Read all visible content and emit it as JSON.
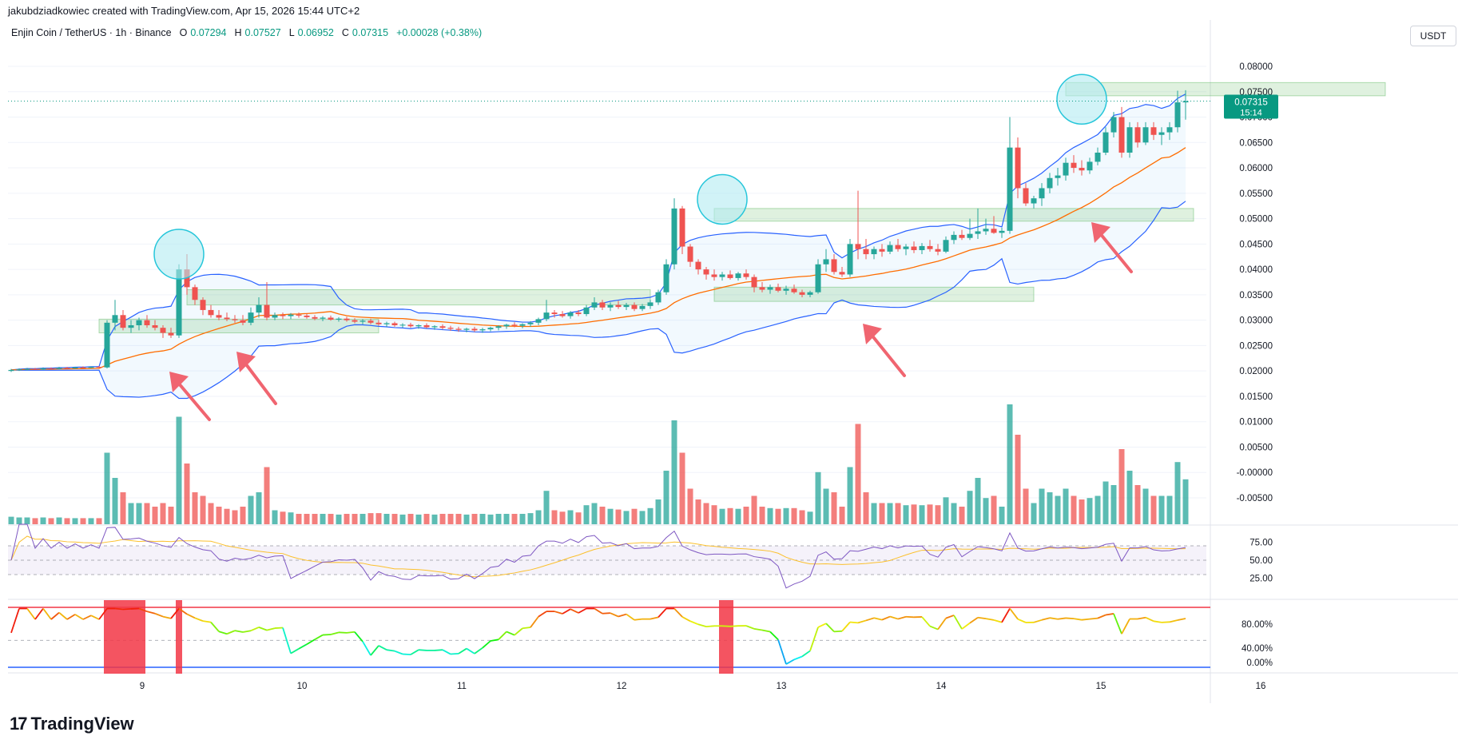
{
  "header": {
    "created_line": "jakubdziadkowiec created with TradingView.com, Apr 15, 2026 15:44 UTC+2",
    "symbol": "Enjin Coin / TetherUS · 1h · Binance",
    "o_label": "O",
    "o_value": "0.07294",
    "h_label": "H",
    "h_value": "0.07527",
    "l_label": "L",
    "l_value": "0.06952",
    "c_label": "C",
    "c_value": "0.07315",
    "change": "+0.00028 (+0.38%)",
    "currency": "USDT"
  },
  "price_badge": {
    "price": "0.07315",
    "countdown": "15:14"
  },
  "brand": {
    "name": "TradingView"
  },
  "colors": {
    "up": "#26a69a",
    "down": "#ef5350",
    "bb": "#2962ff",
    "ma": "#ff6d00",
    "rsi": "#7e57c2",
    "rsi_ma": "#fbc02d"
  },
  "chart_data": {
    "type": "candlestick",
    "price_axis": [
      "0.08000",
      "0.07500",
      "0.07000",
      "0.06500",
      "0.06000",
      "0.05500",
      "0.05000",
      "0.04500",
      "0.04000",
      "0.03500",
      "0.03000",
      "0.02500",
      "0.02000",
      "0.01500",
      "0.01000",
      "0.00500",
      "-0.00000",
      "-0.00500"
    ],
    "ylim": [
      -0.005,
      0.08
    ],
    "time_axis": [
      "9",
      "10",
      "11",
      "12",
      "13",
      "14",
      "15",
      "16"
    ],
    "rsi_axis": [
      "75.00",
      "50.00",
      "25.00"
    ],
    "osc_axis": [
      "80.00%",
      "40.00%",
      "0.00%"
    ],
    "last_close": 0.07315,
    "candles": [
      {
        "o": 0.02,
        "h": 0.0204,
        "l": 0.0198,
        "c": 0.0202
      },
      {
        "o": 0.0202,
        "h": 0.0205,
        "l": 0.02,
        "c": 0.0203
      },
      {
        "o": 0.0203,
        "h": 0.0206,
        "l": 0.0201,
        "c": 0.0204
      },
      {
        "o": 0.0204,
        "h": 0.0206,
        "l": 0.0202,
        "c": 0.0203
      },
      {
        "o": 0.0203,
        "h": 0.0207,
        "l": 0.0202,
        "c": 0.0205
      },
      {
        "o": 0.0205,
        "h": 0.0207,
        "l": 0.0203,
        "c": 0.0204
      },
      {
        "o": 0.0204,
        "h": 0.0208,
        "l": 0.0203,
        "c": 0.0206
      },
      {
        "o": 0.0206,
        "h": 0.0208,
        "l": 0.0204,
        "c": 0.0205
      },
      {
        "o": 0.0205,
        "h": 0.0208,
        "l": 0.0204,
        "c": 0.0207
      },
      {
        "o": 0.0207,
        "h": 0.0209,
        "l": 0.0205,
        "c": 0.0206
      },
      {
        "o": 0.0206,
        "h": 0.0209,
        "l": 0.0205,
        "c": 0.0208
      },
      {
        "o": 0.0208,
        "h": 0.021,
        "l": 0.0206,
        "c": 0.0207
      },
      {
        "o": 0.0207,
        "h": 0.03,
        "l": 0.0205,
        "c": 0.0295
      },
      {
        "o": 0.0295,
        "h": 0.034,
        "l": 0.028,
        "c": 0.031
      },
      {
        "o": 0.031,
        "h": 0.032,
        "l": 0.028,
        "c": 0.0285
      },
      {
        "o": 0.0285,
        "h": 0.03,
        "l": 0.0275,
        "c": 0.029
      },
      {
        "o": 0.029,
        "h": 0.0305,
        "l": 0.028,
        "c": 0.03
      },
      {
        "o": 0.03,
        "h": 0.031,
        "l": 0.0285,
        "c": 0.029
      },
      {
        "o": 0.029,
        "h": 0.03,
        "l": 0.028,
        "c": 0.0285
      },
      {
        "o": 0.0285,
        "h": 0.029,
        "l": 0.0265,
        "c": 0.0275
      },
      {
        "o": 0.0275,
        "h": 0.0285,
        "l": 0.0265,
        "c": 0.027
      },
      {
        "o": 0.027,
        "h": 0.041,
        "l": 0.0265,
        "c": 0.04
      },
      {
        "o": 0.04,
        "h": 0.043,
        "l": 0.035,
        "c": 0.0365
      },
      {
        "o": 0.0365,
        "h": 0.037,
        "l": 0.033,
        "c": 0.034
      },
      {
        "o": 0.034,
        "h": 0.0345,
        "l": 0.031,
        "c": 0.032
      },
      {
        "o": 0.032,
        "h": 0.033,
        "l": 0.0305,
        "c": 0.031
      },
      {
        "o": 0.031,
        "h": 0.032,
        "l": 0.03,
        "c": 0.0305
      },
      {
        "o": 0.0305,
        "h": 0.0315,
        "l": 0.0298,
        "c": 0.0302
      },
      {
        "o": 0.0302,
        "h": 0.031,
        "l": 0.0295,
        "c": 0.03
      },
      {
        "o": 0.03,
        "h": 0.031,
        "l": 0.029,
        "c": 0.0295
      },
      {
        "o": 0.0295,
        "h": 0.0325,
        "l": 0.029,
        "c": 0.0315
      },
      {
        "o": 0.0315,
        "h": 0.0345,
        "l": 0.0305,
        "c": 0.033
      },
      {
        "o": 0.033,
        "h": 0.0375,
        "l": 0.03,
        "c": 0.0305
      },
      {
        "o": 0.0305,
        "h": 0.0315,
        "l": 0.03,
        "c": 0.031
      },
      {
        "o": 0.031,
        "h": 0.0315,
        "l": 0.0302,
        "c": 0.0308
      },
      {
        "o": 0.0308,
        "h": 0.0314,
        "l": 0.0302,
        "c": 0.0311
      },
      {
        "o": 0.0311,
        "h": 0.0315,
        "l": 0.0305,
        "c": 0.0309
      },
      {
        "o": 0.0309,
        "h": 0.0313,
        "l": 0.0303,
        "c": 0.0306
      },
      {
        "o": 0.0306,
        "h": 0.031,
        "l": 0.03,
        "c": 0.0303
      },
      {
        "o": 0.0303,
        "h": 0.0308,
        "l": 0.0298,
        "c": 0.0305
      },
      {
        "o": 0.0305,
        "h": 0.0309,
        "l": 0.0299,
        "c": 0.0301
      },
      {
        "o": 0.0301,
        "h": 0.0306,
        "l": 0.0297,
        "c": 0.0303
      },
      {
        "o": 0.0303,
        "h": 0.0307,
        "l": 0.0297,
        "c": 0.03
      },
      {
        "o": 0.03,
        "h": 0.0304,
        "l": 0.0294,
        "c": 0.0297
      },
      {
        "o": 0.0297,
        "h": 0.0302,
        "l": 0.0292,
        "c": 0.0299
      },
      {
        "o": 0.0299,
        "h": 0.0303,
        "l": 0.0292,
        "c": 0.0295
      },
      {
        "o": 0.0295,
        "h": 0.03,
        "l": 0.0289,
        "c": 0.0292
      },
      {
        "o": 0.0292,
        "h": 0.0297,
        "l": 0.0287,
        "c": 0.0294
      },
      {
        "o": 0.0294,
        "h": 0.0297,
        "l": 0.0287,
        "c": 0.029
      },
      {
        "o": 0.029,
        "h": 0.0294,
        "l": 0.0285,
        "c": 0.0291
      },
      {
        "o": 0.0291,
        "h": 0.0295,
        "l": 0.0285,
        "c": 0.0288
      },
      {
        "o": 0.0288,
        "h": 0.0292,
        "l": 0.0283,
        "c": 0.029
      },
      {
        "o": 0.029,
        "h": 0.0294,
        "l": 0.0284,
        "c": 0.0286
      },
      {
        "o": 0.0286,
        "h": 0.029,
        "l": 0.0281,
        "c": 0.0288
      },
      {
        "o": 0.0288,
        "h": 0.0292,
        "l": 0.0282,
        "c": 0.0285
      },
      {
        "o": 0.0285,
        "h": 0.0289,
        "l": 0.0279,
        "c": 0.0283
      },
      {
        "o": 0.0283,
        "h": 0.0287,
        "l": 0.0277,
        "c": 0.0281
      },
      {
        "o": 0.0281,
        "h": 0.0285,
        "l": 0.0276,
        "c": 0.0283
      },
      {
        "o": 0.0283,
        "h": 0.0287,
        "l": 0.0277,
        "c": 0.028
      },
      {
        "o": 0.028,
        "h": 0.0285,
        "l": 0.0275,
        "c": 0.0282
      },
      {
        "o": 0.0282,
        "h": 0.0287,
        "l": 0.0278,
        "c": 0.0285
      },
      {
        "o": 0.0285,
        "h": 0.029,
        "l": 0.028,
        "c": 0.0288
      },
      {
        "o": 0.0288,
        "h": 0.0293,
        "l": 0.0283,
        "c": 0.0291
      },
      {
        "o": 0.0291,
        "h": 0.0296,
        "l": 0.0286,
        "c": 0.0289
      },
      {
        "o": 0.0289,
        "h": 0.0294,
        "l": 0.0284,
        "c": 0.0292
      },
      {
        "o": 0.0292,
        "h": 0.0298,
        "l": 0.0287,
        "c": 0.0295
      },
      {
        "o": 0.0295,
        "h": 0.0305,
        "l": 0.029,
        "c": 0.0302
      },
      {
        "o": 0.0302,
        "h": 0.034,
        "l": 0.0298,
        "c": 0.0315
      },
      {
        "o": 0.0315,
        "h": 0.032,
        "l": 0.0305,
        "c": 0.0312
      },
      {
        "o": 0.0312,
        "h": 0.0318,
        "l": 0.0305,
        "c": 0.0308
      },
      {
        "o": 0.0308,
        "h": 0.0318,
        "l": 0.0303,
        "c": 0.0315
      },
      {
        "o": 0.0315,
        "h": 0.032,
        "l": 0.0308,
        "c": 0.0312
      },
      {
        "o": 0.0312,
        "h": 0.033,
        "l": 0.0308,
        "c": 0.0325
      },
      {
        "o": 0.0325,
        "h": 0.0345,
        "l": 0.032,
        "c": 0.0335
      },
      {
        "o": 0.0335,
        "h": 0.034,
        "l": 0.032,
        "c": 0.0325
      },
      {
        "o": 0.0325,
        "h": 0.0335,
        "l": 0.0318,
        "c": 0.033
      },
      {
        "o": 0.033,
        "h": 0.0338,
        "l": 0.0322,
        "c": 0.0326
      },
      {
        "o": 0.0326,
        "h": 0.0334,
        "l": 0.032,
        "c": 0.033
      },
      {
        "o": 0.033,
        "h": 0.0335,
        "l": 0.0318,
        "c": 0.0322
      },
      {
        "o": 0.0322,
        "h": 0.0332,
        "l": 0.0318,
        "c": 0.0328
      },
      {
        "o": 0.0328,
        "h": 0.034,
        "l": 0.0322,
        "c": 0.0335
      },
      {
        "o": 0.0335,
        "h": 0.036,
        "l": 0.033,
        "c": 0.0355
      },
      {
        "o": 0.0355,
        "h": 0.042,
        "l": 0.035,
        "c": 0.041
      },
      {
        "o": 0.041,
        "h": 0.054,
        "l": 0.04,
        "c": 0.052
      },
      {
        "o": 0.052,
        "h": 0.0525,
        "l": 0.043,
        "c": 0.0445
      },
      {
        "o": 0.0445,
        "h": 0.045,
        "l": 0.0405,
        "c": 0.0415
      },
      {
        "o": 0.0415,
        "h": 0.042,
        "l": 0.039,
        "c": 0.04
      },
      {
        "o": 0.04,
        "h": 0.0405,
        "l": 0.038,
        "c": 0.039
      },
      {
        "o": 0.039,
        "h": 0.04,
        "l": 0.0378,
        "c": 0.0385
      },
      {
        "o": 0.0385,
        "h": 0.0395,
        "l": 0.0378,
        "c": 0.039
      },
      {
        "o": 0.039,
        "h": 0.0398,
        "l": 0.038,
        "c": 0.0383
      },
      {
        "o": 0.0383,
        "h": 0.0395,
        "l": 0.0378,
        "c": 0.0392
      },
      {
        "o": 0.0392,
        "h": 0.04,
        "l": 0.038,
        "c": 0.0385
      },
      {
        "o": 0.0385,
        "h": 0.039,
        "l": 0.0355,
        "c": 0.0365
      },
      {
        "o": 0.0365,
        "h": 0.0375,
        "l": 0.0355,
        "c": 0.036
      },
      {
        "o": 0.036,
        "h": 0.037,
        "l": 0.0352,
        "c": 0.0365
      },
      {
        "o": 0.0365,
        "h": 0.0372,
        "l": 0.0355,
        "c": 0.0358
      },
      {
        "o": 0.0358,
        "h": 0.0368,
        "l": 0.035,
        "c": 0.0362
      },
      {
        "o": 0.0362,
        "h": 0.037,
        "l": 0.0352,
        "c": 0.0355
      },
      {
        "o": 0.0355,
        "h": 0.036,
        "l": 0.0345,
        "c": 0.035
      },
      {
        "o": 0.035,
        "h": 0.0358,
        "l": 0.0345,
        "c": 0.0355
      },
      {
        "o": 0.0355,
        "h": 0.042,
        "l": 0.0352,
        "c": 0.041
      },
      {
        "o": 0.041,
        "h": 0.044,
        "l": 0.0395,
        "c": 0.042
      },
      {
        "o": 0.042,
        "h": 0.043,
        "l": 0.039,
        "c": 0.0395
      },
      {
        "o": 0.0395,
        "h": 0.0405,
        "l": 0.0385,
        "c": 0.039
      },
      {
        "o": 0.039,
        "h": 0.046,
        "l": 0.0385,
        "c": 0.045
      },
      {
        "o": 0.045,
        "h": 0.0555,
        "l": 0.042,
        "c": 0.044
      },
      {
        "o": 0.044,
        "h": 0.046,
        "l": 0.042,
        "c": 0.043
      },
      {
        "o": 0.043,
        "h": 0.0445,
        "l": 0.042,
        "c": 0.044
      },
      {
        "o": 0.044,
        "h": 0.045,
        "l": 0.0425,
        "c": 0.0435
      },
      {
        "o": 0.0435,
        "h": 0.0455,
        "l": 0.043,
        "c": 0.0448
      },
      {
        "o": 0.0448,
        "h": 0.046,
        "l": 0.0435,
        "c": 0.044
      },
      {
        "o": 0.044,
        "h": 0.045,
        "l": 0.0428,
        "c": 0.0445
      },
      {
        "o": 0.0445,
        "h": 0.0455,
        "l": 0.0432,
        "c": 0.0438
      },
      {
        "o": 0.0438,
        "h": 0.0452,
        "l": 0.043,
        "c": 0.0446
      },
      {
        "o": 0.0446,
        "h": 0.0458,
        "l": 0.0435,
        "c": 0.044
      },
      {
        "o": 0.044,
        "h": 0.045,
        "l": 0.0428,
        "c": 0.0435
      },
      {
        "o": 0.0435,
        "h": 0.0465,
        "l": 0.0432,
        "c": 0.0458
      },
      {
        "o": 0.0458,
        "h": 0.0475,
        "l": 0.045,
        "c": 0.0468
      },
      {
        "o": 0.0468,
        "h": 0.0478,
        "l": 0.0458,
        "c": 0.0462
      },
      {
        "o": 0.0462,
        "h": 0.05,
        "l": 0.0458,
        "c": 0.047
      },
      {
        "o": 0.047,
        "h": 0.052,
        "l": 0.046,
        "c": 0.0475
      },
      {
        "o": 0.0475,
        "h": 0.05,
        "l": 0.0468,
        "c": 0.048
      },
      {
        "o": 0.048,
        "h": 0.0505,
        "l": 0.047,
        "c": 0.0472
      },
      {
        "o": 0.0472,
        "h": 0.0482,
        "l": 0.0462,
        "c": 0.0476
      },
      {
        "o": 0.0476,
        "h": 0.07,
        "l": 0.047,
        "c": 0.064
      },
      {
        "o": 0.064,
        "h": 0.066,
        "l": 0.054,
        "c": 0.056
      },
      {
        "o": 0.056,
        "h": 0.057,
        "l": 0.0525,
        "c": 0.053
      },
      {
        "o": 0.053,
        "h": 0.0545,
        "l": 0.052,
        "c": 0.054
      },
      {
        "o": 0.054,
        "h": 0.057,
        "l": 0.0525,
        "c": 0.056
      },
      {
        "o": 0.056,
        "h": 0.059,
        "l": 0.055,
        "c": 0.058
      },
      {
        "o": 0.058,
        "h": 0.06,
        "l": 0.0565,
        "c": 0.0585
      },
      {
        "o": 0.0585,
        "h": 0.062,
        "l": 0.0575,
        "c": 0.061
      },
      {
        "o": 0.061,
        "h": 0.0625,
        "l": 0.059,
        "c": 0.06
      },
      {
        "o": 0.06,
        "h": 0.0615,
        "l": 0.0585,
        "c": 0.0595
      },
      {
        "o": 0.0595,
        "h": 0.062,
        "l": 0.0588,
        "c": 0.0612
      },
      {
        "o": 0.0612,
        "h": 0.064,
        "l": 0.0605,
        "c": 0.063
      },
      {
        "o": 0.063,
        "h": 0.068,
        "l": 0.0625,
        "c": 0.067
      },
      {
        "o": 0.067,
        "h": 0.071,
        "l": 0.066,
        "c": 0.07
      },
      {
        "o": 0.07,
        "h": 0.072,
        "l": 0.062,
        "c": 0.063
      },
      {
        "o": 0.063,
        "h": 0.069,
        "l": 0.062,
        "c": 0.068
      },
      {
        "o": 0.068,
        "h": 0.069,
        "l": 0.064,
        "c": 0.065
      },
      {
        "o": 0.065,
        "h": 0.069,
        "l": 0.0645,
        "c": 0.068
      },
      {
        "o": 0.068,
        "h": 0.069,
        "l": 0.0655,
        "c": 0.0665
      },
      {
        "o": 0.0665,
        "h": 0.068,
        "l": 0.0645,
        "c": 0.067
      },
      {
        "o": 0.067,
        "h": 0.069,
        "l": 0.0655,
        "c": 0.068
      },
      {
        "o": 0.068,
        "h": 0.0752,
        "l": 0.067,
        "c": 0.0729
      },
      {
        "o": 0.0729,
        "h": 0.0753,
        "l": 0.0695,
        "c": 0.07315
      }
    ],
    "supply_zones": [
      {
        "from": 0.033,
        "to": 0.036,
        "start_index": 22,
        "end_index": 80
      },
      {
        "from": 0.0275,
        "to": 0.0302,
        "start_index": 11,
        "end_index": 46
      },
      {
        "from": 0.0495,
        "to": 0.052,
        "start_index": 88,
        "end_index": 148
      },
      {
        "from": 0.0337,
        "to": 0.0365,
        "start_index": 88,
        "end_index": 128
      },
      {
        "from": 0.0742,
        "to": 0.0768,
        "start_index": 132,
        "end_index": 172
      }
    ]
  }
}
